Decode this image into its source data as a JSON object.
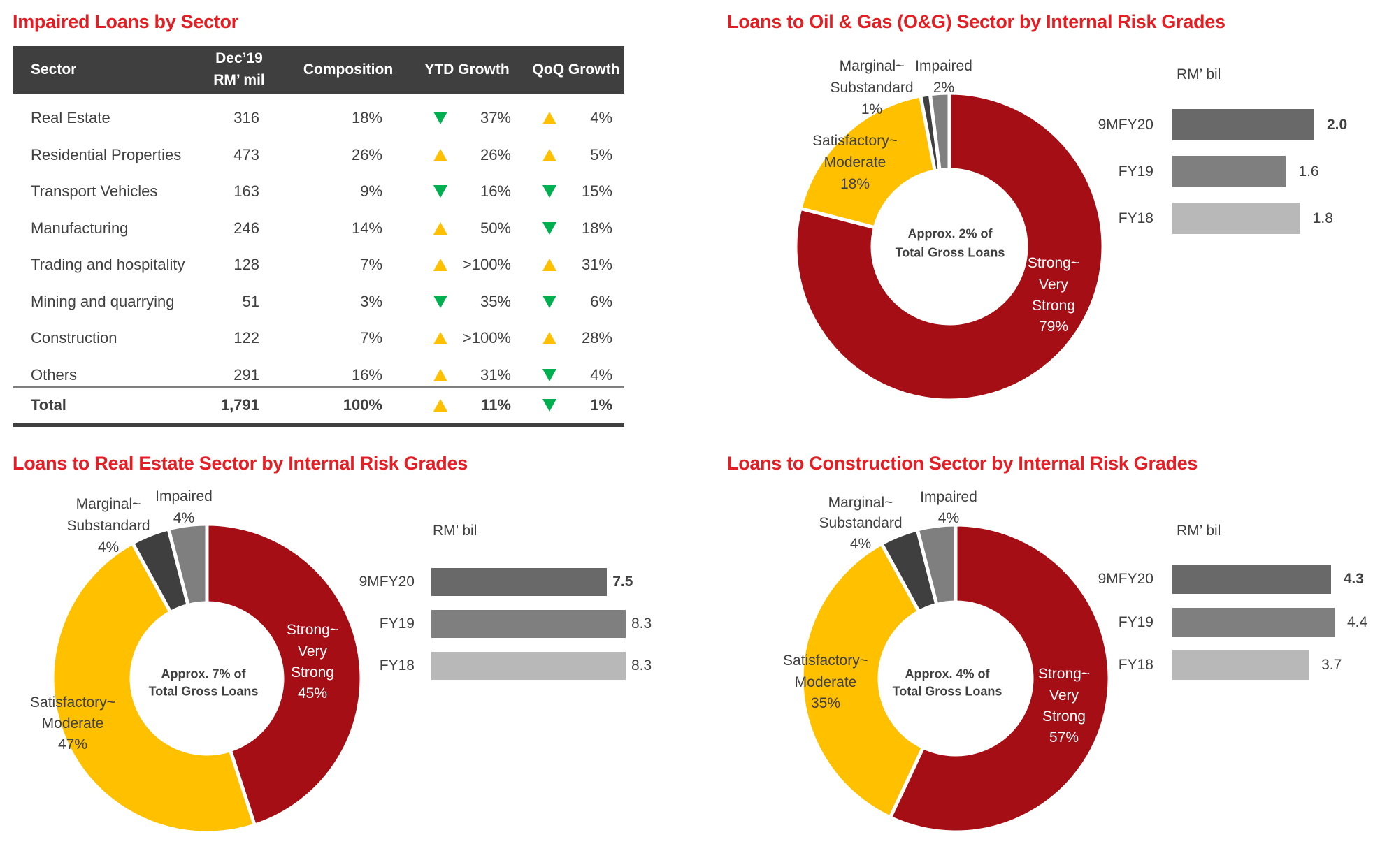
{
  "colors": {
    "title": "#e31e24",
    "header_bg": "#3f3f3f",
    "up": "#ffc000",
    "down": "#00b050",
    "strong": "#a50e15",
    "satisfactory": "#ffc000",
    "marginal": "#3f3f3f",
    "impaired": "#7f7f7f",
    "bar_9mfy20": "#696969",
    "bar_fy19": "#7f7f7f",
    "bar_fy18": "#b8b8b8"
  },
  "table": {
    "title": "Impaired Loans by Sector",
    "headers": {
      "sector": "Sector",
      "amount_line1": "Dec’19",
      "amount_line2": "RM’ mil",
      "composition": "Composition",
      "ytd": "YTD Growth",
      "qoq": "QoQ Growth"
    },
    "rows": [
      {
        "sector": "Real Estate",
        "amount": "316",
        "composition": "18%",
        "ytd_dir": "down",
        "ytd": "37%",
        "qoq_dir": "up",
        "qoq": "4%"
      },
      {
        "sector": "Residential Properties",
        "amount": "473",
        "composition": "26%",
        "ytd_dir": "up",
        "ytd": "26%",
        "qoq_dir": "up",
        "qoq": "5%"
      },
      {
        "sector": "Transport Vehicles",
        "amount": "163",
        "composition": "9%",
        "ytd_dir": "down",
        "ytd": "16%",
        "qoq_dir": "down",
        "qoq": "15%"
      },
      {
        "sector": "Manufacturing",
        "amount": "246",
        "composition": "14%",
        "ytd_dir": "up",
        "ytd": "50%",
        "qoq_dir": "down",
        "qoq": "18%"
      },
      {
        "sector": "Trading and hospitality",
        "amount": "128",
        "composition": "7%",
        "ytd_dir": "up",
        "ytd": ">100%",
        "qoq_dir": "up",
        "qoq": "31%"
      },
      {
        "sector": "Mining and quarrying",
        "amount": "51",
        "composition": "3%",
        "ytd_dir": "down",
        "ytd": "35%",
        "qoq_dir": "down",
        "qoq": "6%"
      },
      {
        "sector": "Construction",
        "amount": "122",
        "composition": "7%",
        "ytd_dir": "up",
        "ytd": ">100%",
        "qoq_dir": "up",
        "qoq": "28%"
      },
      {
        "sector": "Others",
        "amount": "291",
        "composition": "16%",
        "ytd_dir": "up",
        "ytd": "31%",
        "qoq_dir": "down",
        "qoq": "4%"
      }
    ],
    "total": {
      "sector": "Total",
      "amount": "1,791",
      "composition": "100%",
      "ytd_dir": "up",
      "ytd": "11%",
      "qoq_dir": "down",
      "qoq": "1%"
    }
  },
  "chart_data": [
    {
      "type": "table",
      "title": "Impaired Loans by Sector",
      "columns": [
        "Sector",
        "Dec’19 RM’ mil",
        "Composition",
        "YTD Growth",
        "QoQ Growth"
      ]
    },
    {
      "type": "pie",
      "id": "og",
      "title": "Loans to Oil & Gas (O&G) Sector by Internal Risk Grades",
      "center_text_1": "Approx. 2% of",
      "center_text_2": "Total Gross Loans",
      "slices": [
        {
          "key": "strong",
          "lines": [
            "Strong~",
            "Very",
            "Strong"
          ],
          "pct_label": "79%",
          "value": 79
        },
        {
          "key": "satisfactory",
          "lines": [
            "Satisfactory~",
            "Moderate"
          ],
          "pct_label": "18%",
          "value": 18
        },
        {
          "key": "marginal",
          "lines": [
            "Marginal~",
            "Substandard"
          ],
          "pct_label": "1%",
          "value": 1
        },
        {
          "key": "impaired",
          "lines": [
            "Impaired"
          ],
          "pct_label": "2%",
          "value": 2
        }
      ],
      "bars": {
        "unit": "RM’ bil",
        "categories": [
          "9MFY20",
          "FY19",
          "FY18"
        ],
        "values": [
          2.0,
          1.6,
          1.8
        ],
        "labels": [
          "2.0",
          "1.6",
          "1.8"
        ]
      }
    },
    {
      "type": "pie",
      "id": "re",
      "title": "Loans to Real Estate Sector by Internal Risk Grades",
      "center_text_1": "Approx. 7% of",
      "center_text_2": "Total Gross Loans",
      "slices": [
        {
          "key": "strong",
          "lines": [
            "Strong~",
            "Very",
            "Strong"
          ],
          "pct_label": "45%",
          "value": 45
        },
        {
          "key": "satisfactory",
          "lines": [
            "Satisfactory~",
            "Moderate"
          ],
          "pct_label": "47%",
          "value": 47
        },
        {
          "key": "marginal",
          "lines": [
            "Marginal~",
            "Substandard"
          ],
          "pct_label": "4%",
          "value": 4
        },
        {
          "key": "impaired",
          "lines": [
            "Impaired"
          ],
          "pct_label": "4%",
          "value": 4
        }
      ],
      "bars": {
        "unit": "RM’ bil",
        "categories": [
          "9MFY20",
          "FY19",
          "FY18"
        ],
        "values": [
          7.5,
          8.3,
          8.3
        ],
        "labels": [
          "7.5",
          "8.3",
          "8.3"
        ]
      }
    },
    {
      "type": "pie",
      "id": "cn",
      "title": "Loans to Construction Sector by Internal Risk Grades",
      "center_text_1": "Approx. 4% of",
      "center_text_2": "Total Gross Loans",
      "slices": [
        {
          "key": "strong",
          "lines": [
            "Strong~",
            "Very",
            "Strong"
          ],
          "pct_label": "57%",
          "value": 57
        },
        {
          "key": "satisfactory",
          "lines": [
            "Satisfactory~",
            "Moderate"
          ],
          "pct_label": "35%",
          "value": 35
        },
        {
          "key": "marginal",
          "lines": [
            "Marginal~",
            "Substandard"
          ],
          "pct_label": "4%",
          "value": 4
        },
        {
          "key": "impaired",
          "lines": [
            "Impaired"
          ],
          "pct_label": "4%",
          "value": 4
        }
      ],
      "bars": {
        "unit": "RM’ bil",
        "categories": [
          "9MFY20",
          "FY19",
          "FY18"
        ],
        "values": [
          4.3,
          4.4,
          3.7
        ],
        "labels": [
          "4.3",
          "4.4",
          "3.7"
        ]
      }
    }
  ]
}
